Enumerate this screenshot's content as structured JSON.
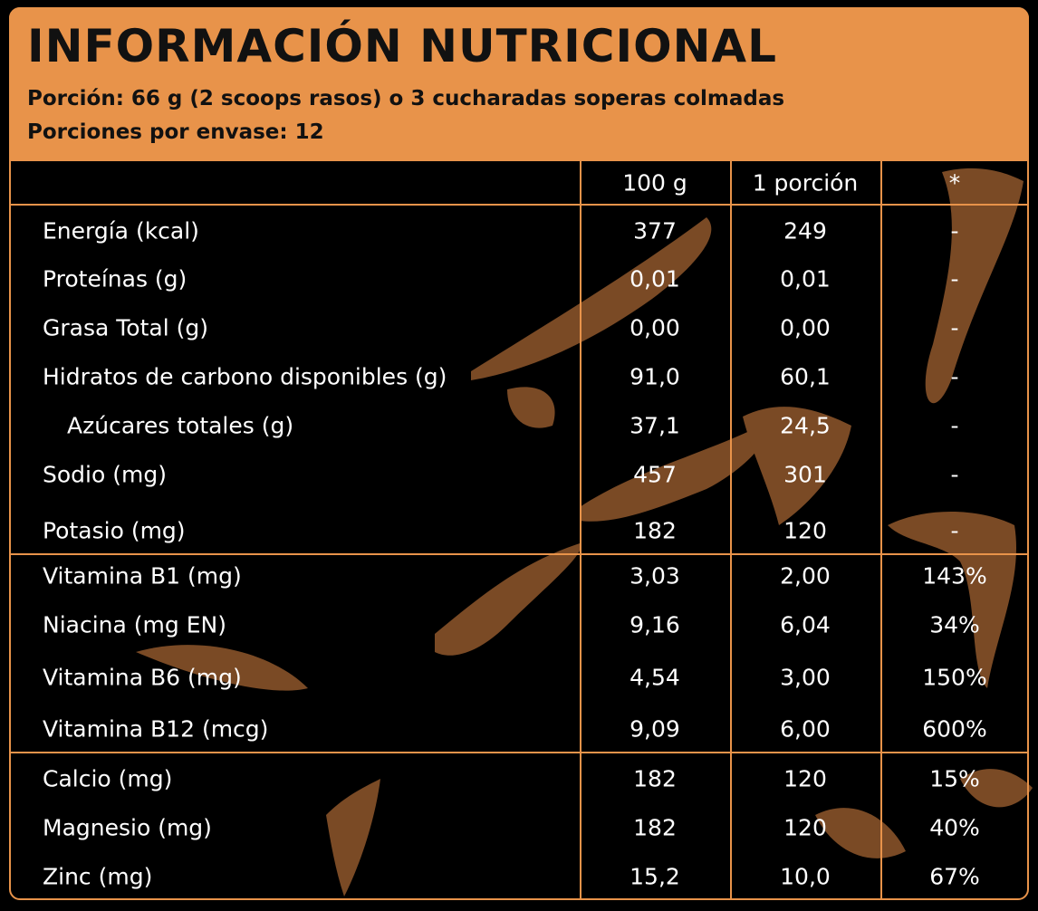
{
  "header": {
    "title": "INFORMACIÓN NUTRICIONAL",
    "lines": [
      "Porción: 66 g (2 scoops rasos) o 3 cucharadas soperas colmadas",
      "Porciones por envase: 12"
    ]
  },
  "table": {
    "columns": [
      "100 g",
      "1 porción",
      "*"
    ],
    "groups": [
      [
        [
          "Energía (kcal)",
          "377",
          "249",
          "-"
        ],
        [
          "Proteínas (g)",
          "0,01",
          "0,01",
          "-"
        ],
        [
          "Grasa Total (g)",
          "0,00",
          "0,00",
          "-"
        ],
        [
          "Hidratos de carbono disponibles (g)",
          "91,0",
          "60,1",
          "-"
        ],
        [
          "Azúcares totales (g)",
          "37,1",
          "24,5",
          "-"
        ],
        [
          "Sodio (mg)",
          "457",
          "301",
          "-"
        ],
        [
          "Potasio (mg)",
          "182",
          "120",
          "-"
        ]
      ],
      [
        [
          "Vitamina B1 (mg)",
          "3,03",
          "2,00",
          "143%"
        ],
        [
          "Niacina (mg EN)",
          "9,16",
          "6,04",
          "34%"
        ],
        [
          "Vitamina B6 (mg)",
          "4,54",
          "3,00",
          "150%"
        ],
        [
          "Vitamina B12 (mcg)",
          "9,09",
          "6,00",
          "600%"
        ]
      ],
      [
        [
          "Calcio (mg)",
          "182",
          "120",
          "15%"
        ],
        [
          "Magnesio (mg)",
          "182",
          "120",
          "40%"
        ],
        [
          "Zinc (mg)",
          "15,2",
          "10,0",
          "67%"
        ]
      ]
    ]
  }
}
